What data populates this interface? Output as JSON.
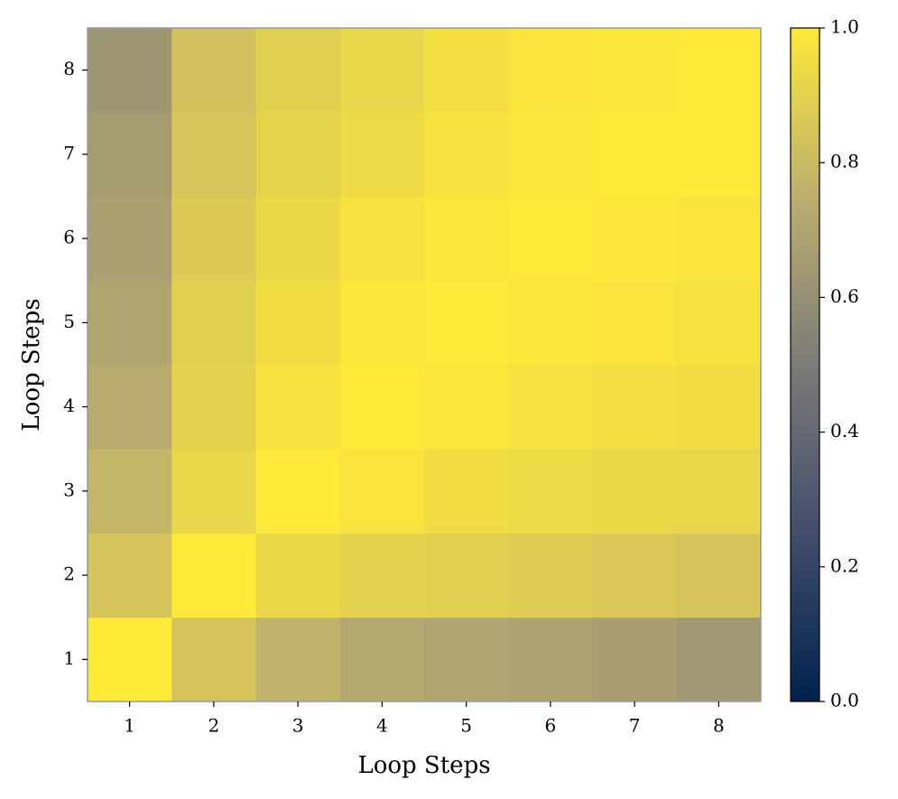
{
  "chart_data": {
    "type": "heatmap",
    "x_label": "Loop Steps",
    "y_label": "Loop Steps",
    "x": [
      1,
      2,
      3,
      4,
      5,
      6,
      7,
      8
    ],
    "y": [
      1,
      2,
      3,
      4,
      5,
      6,
      7,
      8
    ],
    "z": [
      [
        1.0,
        0.84,
        0.77,
        0.72,
        0.7,
        0.69,
        0.67,
        0.64
      ],
      [
        0.84,
        1.0,
        0.93,
        0.9,
        0.89,
        0.88,
        0.86,
        0.84
      ],
      [
        0.78,
        0.92,
        1.0,
        0.98,
        0.95,
        0.94,
        0.93,
        0.92
      ],
      [
        0.73,
        0.9,
        0.97,
        1.0,
        0.99,
        0.97,
        0.96,
        0.95
      ],
      [
        0.7,
        0.89,
        0.95,
        0.99,
        1.0,
        0.99,
        0.98,
        0.97
      ],
      [
        0.68,
        0.87,
        0.93,
        0.97,
        0.99,
        1.0,
        0.995,
        0.98
      ],
      [
        0.66,
        0.85,
        0.91,
        0.94,
        0.97,
        0.99,
        1.0,
        1.0
      ],
      [
        0.63,
        0.83,
        0.89,
        0.92,
        0.96,
        0.98,
        0.99,
        1.0
      ]
    ],
    "colormap": [
      "#00224e",
      "#414d6b",
      "#7c7b78",
      "#bcaf6f",
      "#fee838"
    ],
    "clim": [
      0,
      1
    ],
    "cticks": [
      {
        "value": 0,
        "label": "0.0"
      },
      {
        "value": 0.2,
        "label": "0.2"
      },
      {
        "value": 0.4,
        "label": "0.4"
      },
      {
        "value": 0.6,
        "label": "0.6"
      },
      {
        "value": 0.8,
        "label": "0.8"
      },
      {
        "value": 1,
        "label": "1.0"
      }
    ]
  }
}
